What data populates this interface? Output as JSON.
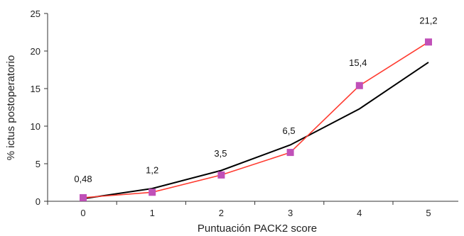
{
  "chart_data": {
    "type": "line",
    "xlabel": "Puntuación PACK2 score",
    "ylabel": "% ictus postoperatorio",
    "ylim": [
      0,
      25
    ],
    "yticks": [
      "0",
      "5",
      "10",
      "15",
      "20",
      "25"
    ],
    "x": [
      0,
      1,
      2,
      3,
      4,
      5
    ],
    "xticks": [
      "0",
      "1",
      "2",
      "3",
      "4",
      "5"
    ],
    "series": [
      {
        "values": [
          0.48,
          1.2,
          3.5,
          6.5,
          15.4,
          21.2
        ],
        "labels": [
          "0,48",
          "1,2",
          "3,5",
          "6,5",
          "15,4",
          "21,2"
        ],
        "color": "#ff3b30",
        "marker_color": "#c050b8"
      },
      {
        "values": [
          0.35,
          1.7,
          4.1,
          7.5,
          12.3,
          18.5
        ],
        "color": "#000000"
      }
    ],
    "grid": false
  }
}
